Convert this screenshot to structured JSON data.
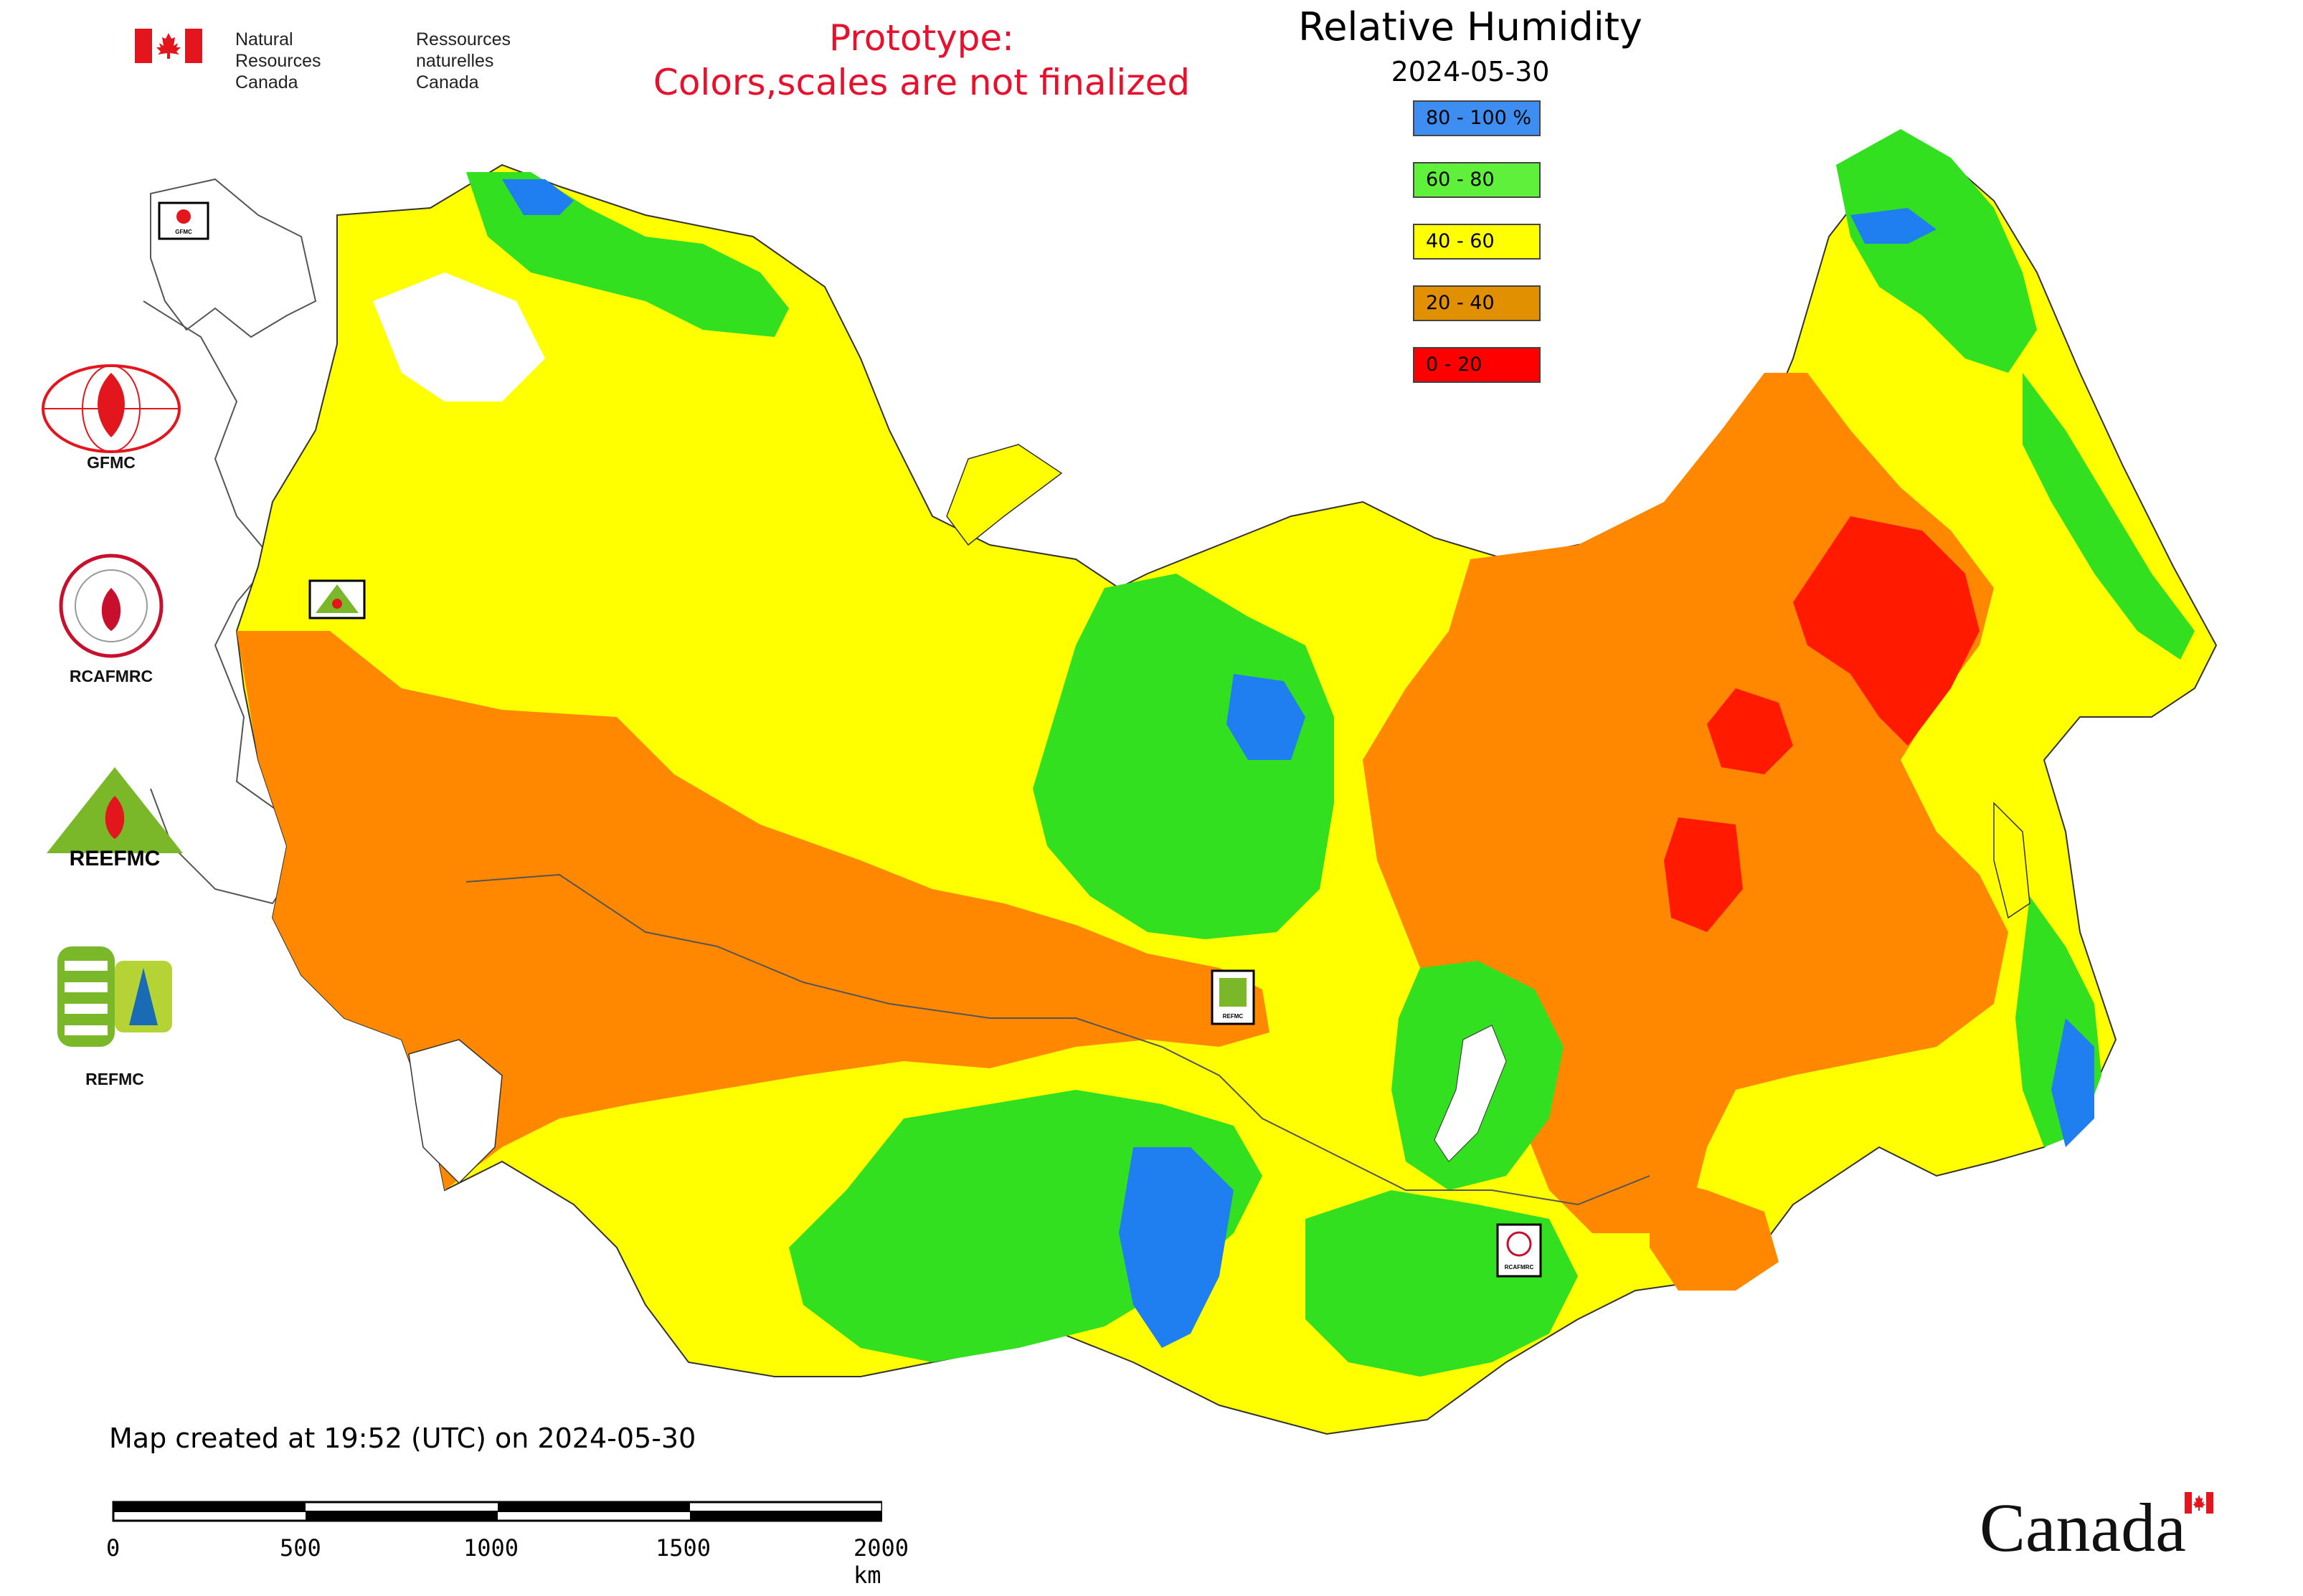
{
  "header": {
    "agency_en": "Natural Resources\nCanada",
    "agency_fr": "Ressources naturelles\nCanada",
    "prototype_line1": "Prototype:",
    "prototype_line2": "Colors,scales are not finalized"
  },
  "map": {
    "title": "Relative Humidity",
    "date": "2024-05-30",
    "legend": [
      {
        "label": "80 - 100 %",
        "color": "#3d8ef0"
      },
      {
        "label": "60 - 80",
        "color": "#5ef03a"
      },
      {
        "label": "40 - 60",
        "color": "#ffff00"
      },
      {
        "label": "20 - 40",
        "color": "#e09000"
      },
      {
        "label": "0 - 20",
        "color": "#ff0000"
      }
    ],
    "fill_colors": {
      "humid_blue": "#1f7ff0",
      "green": "#33e020",
      "yellow": "#ffff00",
      "orange": "#ff8800",
      "red": "#ff1a00"
    }
  },
  "logos": {
    "gfmc": "GFMC",
    "rcafmrc": "RCAFMRC",
    "reefmc_wordmark": "REEFMC",
    "refmc": "REFMC",
    "marker_gfmc": "GFMC",
    "marker_refmc": "REFMC",
    "marker_rcafmrc": "RCAFMRC"
  },
  "footer": {
    "created": "Map created at 19:52 (UTC) on 2024-05-30",
    "scale_ticks": [
      "0",
      "500",
      "1000",
      "1500",
      "2000 km"
    ],
    "wordmark": "Canada"
  }
}
